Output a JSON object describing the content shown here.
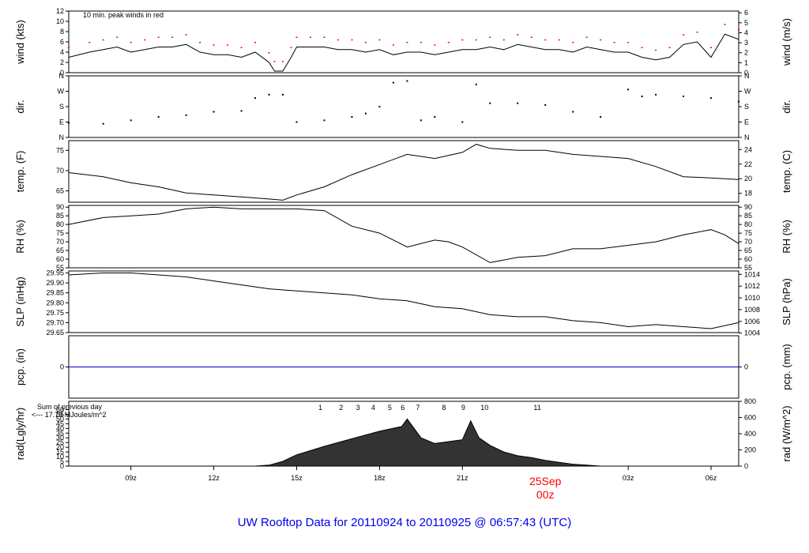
{
  "title": "UW Rooftop Data for 20110924  to  20110925 @ 06:57:43  (UTC)",
  "colors": {
    "trace": "#000000",
    "peak": "#ff0000",
    "pcp": "#0000cc",
    "note": "#8800aa",
    "title": "#0000ee",
    "date": "#ff0000"
  },
  "chart_data": {
    "type": "line",
    "x_axis": {
      "range_hours": [
        6.75,
        31.0
      ],
      "ticks": [
        {
          "h": 9,
          "label": "09z"
        },
        {
          "h": 12,
          "label": "12z"
        },
        {
          "h": 15,
          "label": "15z"
        },
        {
          "h": 18,
          "label": "18z"
        },
        {
          "h": 21,
          "label": "21z"
        },
        {
          "h": 27,
          "label": "03z"
        },
        {
          "h": 30,
          "label": "06z"
        }
      ],
      "date_marker": {
        "h": 24,
        "line1": "25Sep",
        "line2": "00z"
      }
    },
    "panels": [
      {
        "id": "wind",
        "left_label": "wind (kts)",
        "right_label": "wind (m/s)",
        "ylim": [
          0,
          12
        ],
        "left_ticks": [
          "0",
          "2",
          "4",
          "6",
          "8",
          "10",
          "12"
        ],
        "right_ticks": [
          {
            "v": 0,
            "t": "0"
          },
          {
            "v": 1.944,
            "t": "1"
          },
          {
            "v": 3.888,
            "t": "2"
          },
          {
            "v": 5.832,
            "t": "3"
          },
          {
            "v": 7.776,
            "t": "4"
          },
          {
            "v": 9.72,
            "t": "5"
          },
          {
            "v": 11.664,
            "t": "6"
          }
        ],
        "note": "10 min. peak winds in red",
        "series": [
          {
            "hours": [
              6.75,
              7.5,
              8.0,
              8.5,
              9.0,
              9.5,
              10.0,
              10.5,
              11.0,
              11.5,
              12.0,
              12.5,
              13.0,
              13.5,
              14.0,
              14.2,
              14.5,
              14.8,
              15.0,
              15.5,
              16.0,
              16.5,
              17.0,
              17.5,
              18.0,
              18.5,
              19.0,
              19.5,
              20.0,
              20.5,
              21.0,
              21.5,
              22.0,
              22.5,
              23.0,
              23.5,
              24.0,
              24.5,
              25.0,
              25.5,
              26.0,
              26.5,
              27.0,
              27.5,
              28.0,
              28.5,
              29.0,
              29.5,
              30.0,
              30.5,
              31.0
            ],
            "values": [
              3,
              4,
              4.5,
              5,
              4,
              4.5,
              5,
              5,
              5.5,
              4,
              3.5,
              3.5,
              3,
              4,
              2,
              0.3,
              0.3,
              3,
              5,
              5,
              5,
              4.5,
              4.5,
              4,
              4.5,
              3.5,
              4,
              4,
              3.5,
              4,
              4.5,
              4.5,
              5,
              4.5,
              5.5,
              5,
              4.5,
              4.5,
              4,
              5,
              4.5,
              4,
              4,
              3,
              2.5,
              3,
              5.5,
              6,
              3,
              7.5,
              6.5
            ]
          }
        ]
      },
      {
        "id": "dir",
        "left_label": "dir.",
        "right_label": "dir.",
        "ylim": [
          0,
          360
        ],
        "left_ticks": [
          "N",
          "E",
          "S",
          "W",
          "N"
        ],
        "right_ticks": [
          {
            "v": 0,
            "t": "N"
          },
          {
            "v": 90,
            "t": "E"
          },
          {
            "v": 180,
            "t": "S"
          },
          {
            "v": 270,
            "t": "W"
          },
          {
            "v": 360,
            "t": "N"
          }
        ],
        "series": [
          {
            "hours": [
              6.75,
              8.0,
              9.0,
              10.0,
              11.0,
              12.0,
              13.0,
              13.5,
              14.0,
              14.5,
              15.0,
              16.0,
              17.0,
              17.5,
              18.0,
              18.5,
              19.0,
              19.5,
              20.0,
              21.0,
              21.5,
              22.0,
              23.0,
              24.0,
              25.0,
              26.0,
              27.0,
              27.5,
              28.0,
              29.0,
              30.0,
              31.0
            ],
            "values": [
              85,
              80,
              100,
              120,
              130,
              150,
              155,
              230,
              250,
              250,
              90,
              100,
              120,
              140,
              180,
              320,
              330,
              100,
              120,
              90,
              310,
              200,
              200,
              190,
              150,
              120,
              280,
              240,
              250,
              240,
              230,
              210
            ]
          }
        ]
      },
      {
        "id": "temp",
        "left_label": "temp. (F)",
        "right_label": "temp. (C)",
        "ylim": [
          62.2,
          77.4
        ],
        "left_ticks": [
          "65",
          "70",
          "75"
        ],
        "right_ticks": [
          {
            "v": 64.4,
            "t": "18"
          },
          {
            "v": 68.0,
            "t": "20"
          },
          {
            "v": 71.6,
            "t": "22"
          },
          {
            "v": 75.2,
            "t": "24"
          }
        ],
        "series": [
          {
            "hours": [
              6.75,
              8.0,
              9.0,
              10.0,
              11.0,
              12.0,
              13.0,
              14.0,
              14.5,
              15.0,
              16.0,
              17.0,
              18.0,
              19.0,
              20.0,
              21.0,
              21.5,
              22.0,
              23.0,
              24.0,
              25.0,
              26.0,
              27.0,
              28.0,
              29.0,
              30.0,
              31.0
            ],
            "values": [
              69.5,
              68.5,
              67,
              66,
              64.5,
              64,
              63.5,
              63,
              62.7,
              64,
              66,
              69,
              71.5,
              74,
              73,
              74.5,
              76.5,
              75.5,
              75,
              75,
              74,
              73.5,
              73,
              71,
              68.5,
              68.2,
              67.8
            ]
          }
        ]
      },
      {
        "id": "rh",
        "left_label": "RH (%)",
        "right_label": "RH (%)",
        "ylim": [
          55,
          91
        ],
        "left_ticks": [
          "55",
          "60",
          "65",
          "70",
          "75",
          "80",
          "85",
          "90"
        ],
        "right_ticks": [
          {
            "v": 55,
            "t": "55"
          },
          {
            "v": 60,
            "t": "60"
          },
          {
            "v": 65,
            "t": "65"
          },
          {
            "v": 70,
            "t": "70"
          },
          {
            "v": 75,
            "t": "75"
          },
          {
            "v": 80,
            "t": "80"
          },
          {
            "v": 85,
            "t": "85"
          },
          {
            "v": 90,
            "t": "90"
          }
        ],
        "series": [
          {
            "hours": [
              6.75,
              8.0,
              9.0,
              10.0,
              11.0,
              12.0,
              13.0,
              14.0,
              15.0,
              16.0,
              17.0,
              18.0,
              19.0,
              20.0,
              20.5,
              21.0,
              22.0,
              23.0,
              24.0,
              25.0,
              26.0,
              27.0,
              28.0,
              29.0,
              30.0,
              30.5,
              31.0
            ],
            "values": [
              80,
              84,
              85,
              86,
              89,
              90,
              89,
              89,
              89,
              88,
              79,
              75,
              67,
              71,
              70,
              67,
              58,
              61,
              62,
              66,
              66,
              68,
              70,
              74,
              77,
              74,
              69
            ]
          }
        ]
      },
      {
        "id": "slp",
        "left_label": "SLP (inHg)",
        "right_label": "SLP (hPa)",
        "ylim": [
          29.65,
          29.96
        ],
        "left_ticks": [
          "29.65",
          "29.70",
          "29.75",
          "29.80",
          "29.85",
          "29.90",
          "29.95"
        ],
        "right_ticks": [
          {
            "v": 29.6475,
            "t": "1004"
          },
          {
            "v": 29.7065,
            "t": "1006"
          },
          {
            "v": 29.7656,
            "t": "1008"
          },
          {
            "v": 29.8247,
            "t": "1010"
          },
          {
            "v": 29.8837,
            "t": "1012"
          },
          {
            "v": 29.9428,
            "t": "1014"
          }
        ],
        "series": [
          {
            "hours": [
              6.75,
              8.0,
              9.0,
              10.0,
              11.0,
              12.0,
              13.0,
              14.0,
              15.0,
              16.0,
              17.0,
              18.0,
              19.0,
              20.0,
              21.0,
              22.0,
              23.0,
              24.0,
              25.0,
              26.0,
              27.0,
              28.0,
              29.0,
              30.0,
              31.0
            ],
            "values": [
              29.94,
              29.95,
              29.95,
              29.94,
              29.93,
              29.91,
              29.89,
              29.87,
              29.86,
              29.85,
              29.84,
              29.82,
              29.81,
              29.78,
              29.77,
              29.74,
              29.73,
              29.73,
              29.71,
              29.7,
              29.68,
              29.69,
              29.68,
              29.67,
              29.7
            ]
          }
        ]
      },
      {
        "id": "pcp",
        "left_label": "pcp. (in)",
        "right_label": "pcp. (mm)",
        "ylim": [
          -1,
          1
        ],
        "left_ticks": [
          "0"
        ],
        "right_ticks": [
          {
            "v": 0,
            "t": "0"
          }
        ],
        "series": [
          {
            "hours": [
              6.75,
              31.0
            ],
            "values": [
              0,
              0
            ]
          }
        ]
      },
      {
        "id": "rad",
        "left_label": "rad(Lgly/hr)",
        "right_label": "rad (W/m^2)",
        "ylim": [
          0,
          68.8
        ],
        "left_ticks": [
          "0",
          "5",
          "10",
          "15",
          "20",
          "25",
          "30",
          "35",
          "40",
          "45",
          "50",
          "55",
          "60"
        ],
        "right_ticks": [
          {
            "v": 0,
            "t": "0"
          },
          {
            "v": 17.2,
            "t": "200"
          },
          {
            "v": 34.4,
            "t": "400"
          },
          {
            "v": 51.6,
            "t": "600"
          },
          {
            "v": 68.8,
            "t": "800"
          }
        ],
        "note_line1": "Sum of previous day",
        "note_line2": "<--- 17.79 MJoules/m^2",
        "hour_markers": [
          {
            "h": 15.86,
            "label": "1"
          },
          {
            "h": 16.61,
            "label": "2"
          },
          {
            "h": 17.22,
            "label": "3"
          },
          {
            "h": 17.77,
            "label": "4"
          },
          {
            "h": 18.37,
            "label": "5"
          },
          {
            "h": 18.84,
            "label": "6"
          },
          {
            "h": 19.39,
            "label": "7"
          },
          {
            "h": 20.33,
            "label": "8"
          },
          {
            "h": 21.03,
            "label": "9"
          },
          {
            "h": 21.8,
            "label": "10"
          },
          {
            "h": 23.71,
            "label": "11"
          }
        ],
        "series": [
          {
            "hours": [
              13.5,
              14.0,
              14.5,
              15.0,
              16.0,
              17.0,
              18.0,
              18.8,
              19.0,
              19.5,
              20.0,
              20.5,
              21.0,
              21.3,
              21.6,
              22.0,
              22.5,
              23.0,
              23.5,
              24.0,
              24.5,
              25.0,
              25.5,
              26.0
            ],
            "values": [
              0,
              1,
              5,
              12,
              21,
              29,
              37,
              42,
              50,
              30,
              24,
              26,
              28,
              48,
              30,
              22,
              15,
              11,
              9,
              6,
              4,
              2,
              1,
              0
            ]
          }
        ]
      }
    ]
  }
}
